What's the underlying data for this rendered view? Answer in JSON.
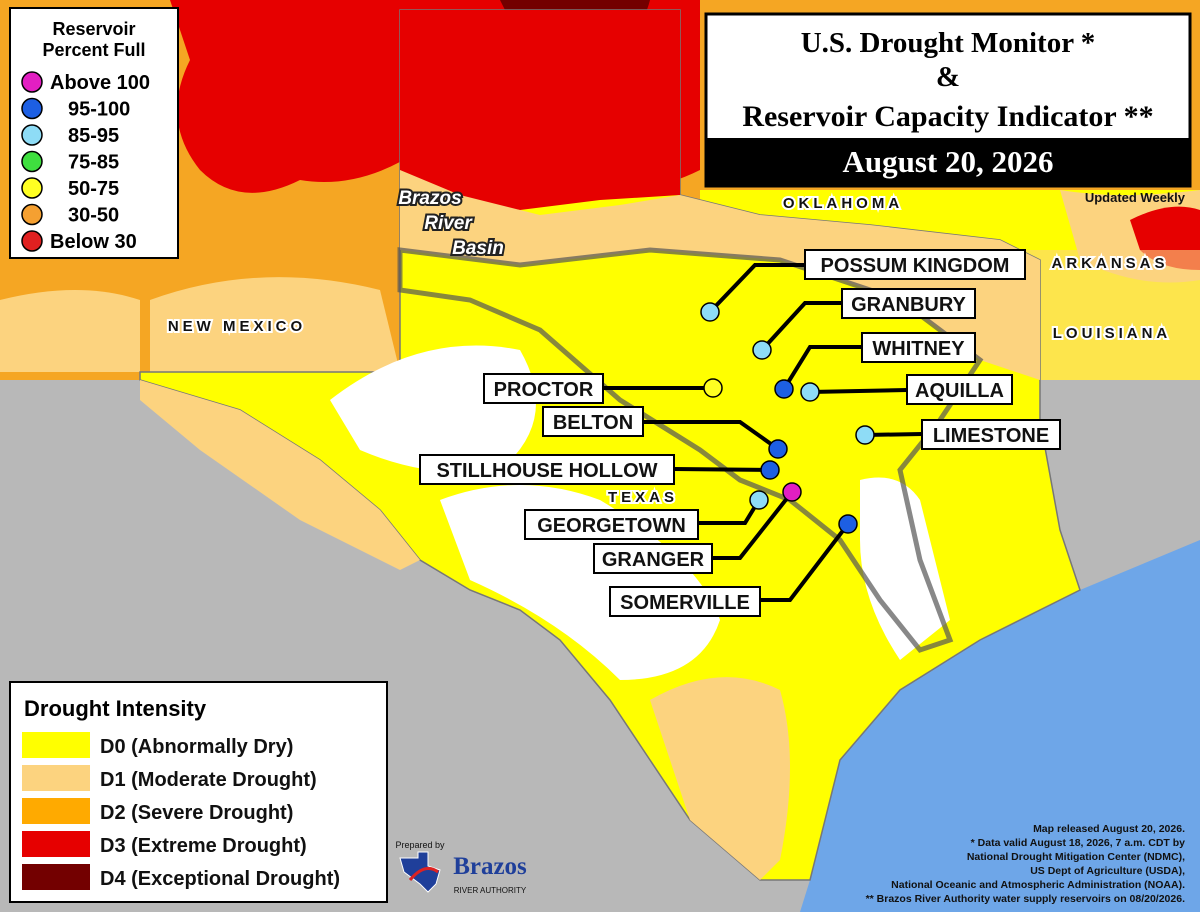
{
  "title": {
    "line1": "U.S. Drought Monitor *",
    "line2": "&",
    "line3": "Reservoir Capacity Indicator **",
    "date": "August 20, 2026",
    "updated": "Updated Weekly"
  },
  "reservoir_legend": {
    "title_lines": [
      "Reservoir",
      "Percent Full"
    ],
    "items": [
      {
        "label": "Above 100",
        "color": "#e21fc2"
      },
      {
        "label": "95-100",
        "color": "#1d5fe3"
      },
      {
        "label": "85-95",
        "color": "#8edcf6"
      },
      {
        "label": "75-85",
        "color": "#3fdf3f"
      },
      {
        "label": "50-75",
        "color": "#ffff22"
      },
      {
        "label": "30-50",
        "color": "#f5a031"
      },
      {
        "label": "Below 30",
        "color": "#e02020"
      }
    ]
  },
  "drought_legend": {
    "title": "Drought Intensity",
    "items": [
      {
        "label": "D0 (Abnormally Dry)",
        "color": "#ffff00"
      },
      {
        "label": "D1 (Moderate Drought)",
        "color": "#fcd37f"
      },
      {
        "label": "D2 (Severe Drought)",
        "color": "#ffaa00"
      },
      {
        "label": "D3 (Extreme Drought)",
        "color": "#e60000"
      },
      {
        "label": "D4 (Exceptional Drought)",
        "color": "#730000"
      }
    ]
  },
  "map_labels": {
    "new_mexico": "NEW MEXICO",
    "oklahoma": "OKLAHOMA",
    "arkansas": "ARKANSAS",
    "louisiana": "LOUISIANA",
    "texas": "TEXAS"
  },
  "basin_label": [
    "Brazos",
    "River",
    "Basin"
  ],
  "reservoirs": [
    {
      "name": "POSSUM KINGDOM",
      "color": "#8edcf6"
    },
    {
      "name": "GRANBURY",
      "color": "#8edcf6"
    },
    {
      "name": "WHITNEY",
      "color": "#1d5fe3"
    },
    {
      "name": "AQUILLA",
      "color": "#8edcf6"
    },
    {
      "name": "LIMESTONE",
      "color": "#8edcf6"
    },
    {
      "name": "PROCTOR",
      "color": "#ffff22"
    },
    {
      "name": "BELTON",
      "color": "#1d5fe3"
    },
    {
      "name": "STILLHOUSE HOLLOW",
      "color": "#1d5fe3"
    },
    {
      "name": "GEORGETOWN",
      "color": "#8edcf6"
    },
    {
      "name": "GRANGER",
      "color": "#e21fc2"
    },
    {
      "name": "SOMERVILLE",
      "color": "#1d5fe3"
    }
  ],
  "credits": [
    "Map released August 20, 2026.",
    "* Data valid August 18, 2026, 7 a.m. CDT by",
    "National Drought Mitigation Center (NDMC),",
    "US Dept of Agriculture (USDA),",
    "National Oceanic and Atmospheric Administration (NOAA).",
    "** Brazos River Authority water supply reservoirs on 08/20/2026."
  ],
  "prepared_by": "Prepared by",
  "logo": {
    "name": "Brazos",
    "sub": "RIVER AUTHORITY"
  }
}
